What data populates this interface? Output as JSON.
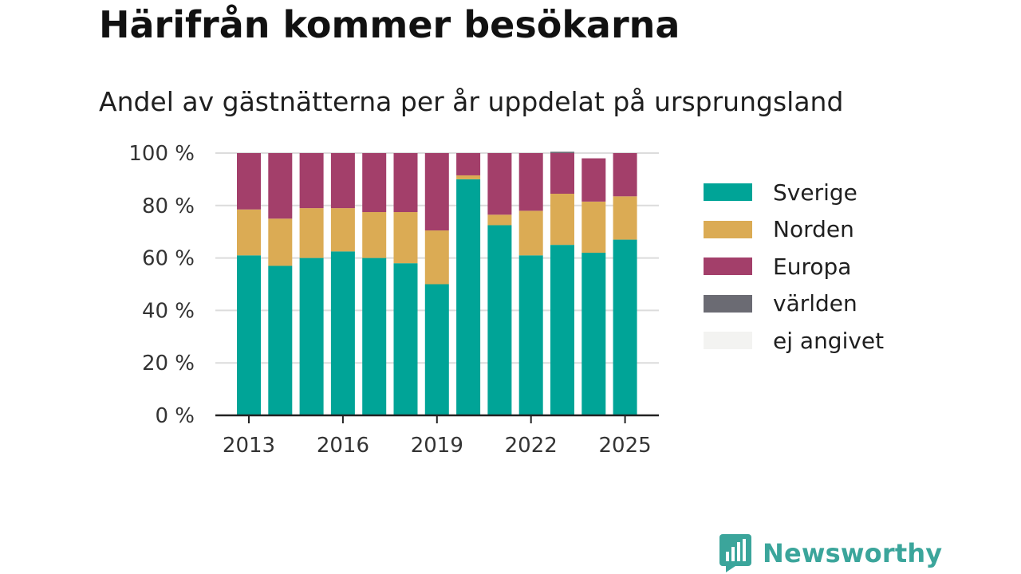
{
  "header": {
    "title": "Härifrån kommer besökarna",
    "subtitle": "Andel av gästnätterna per år uppdelat på ursprungsland"
  },
  "brand": {
    "name": "Newsworthy",
    "color": "#3ba59b",
    "icon": "newsworthy-logo-icon"
  },
  "chart_data": {
    "type": "bar",
    "stacked": true,
    "categories": [
      "2013",
      "2014",
      "2015",
      "2016",
      "2017",
      "2018",
      "2019",
      "2020",
      "2021",
      "2022",
      "2023",
      "2024",
      "2025"
    ],
    "x_tick_labels": [
      "2013",
      "2016",
      "2019",
      "2022",
      "2025"
    ],
    "series": [
      {
        "name": "Sverige",
        "color": "#00a497",
        "values": [
          61,
          57,
          60,
          62.5,
          60,
          58,
          50,
          90,
          72.5,
          61,
          65,
          62,
          67
        ]
      },
      {
        "name": "Norden",
        "color": "#dbab54",
        "values": [
          17.5,
          18,
          19,
          16.5,
          17.5,
          19.5,
          20.5,
          1.5,
          4,
          17,
          19.5,
          19.5,
          16.5
        ]
      },
      {
        "name": "Europa",
        "color": "#a33f6a",
        "values": [
          21.5,
          25,
          21,
          21,
          22.5,
          22.5,
          29.5,
          8.5,
          23.5,
          22,
          15.5,
          16.5,
          16.5
        ]
      },
      {
        "name": "världen",
        "color": "#6b6b73",
        "values": [
          0,
          0,
          0,
          0,
          0,
          0,
          0,
          0,
          0,
          0,
          0.5,
          0,
          0
        ]
      },
      {
        "name": "ej angivet",
        "color": "#f3f3f1",
        "values": [
          0,
          0,
          0,
          0,
          0,
          0,
          0,
          0,
          0,
          0,
          0,
          0,
          0
        ]
      }
    ],
    "y_tick_labels": [
      "0 %",
      "20 %",
      "40 %",
      "60 %",
      "80 %",
      "100 %"
    ],
    "y_ticks": [
      0,
      20,
      40,
      60,
      80,
      100
    ],
    "ylim": [
      0,
      100
    ],
    "grid": true,
    "legend_position": "right"
  }
}
